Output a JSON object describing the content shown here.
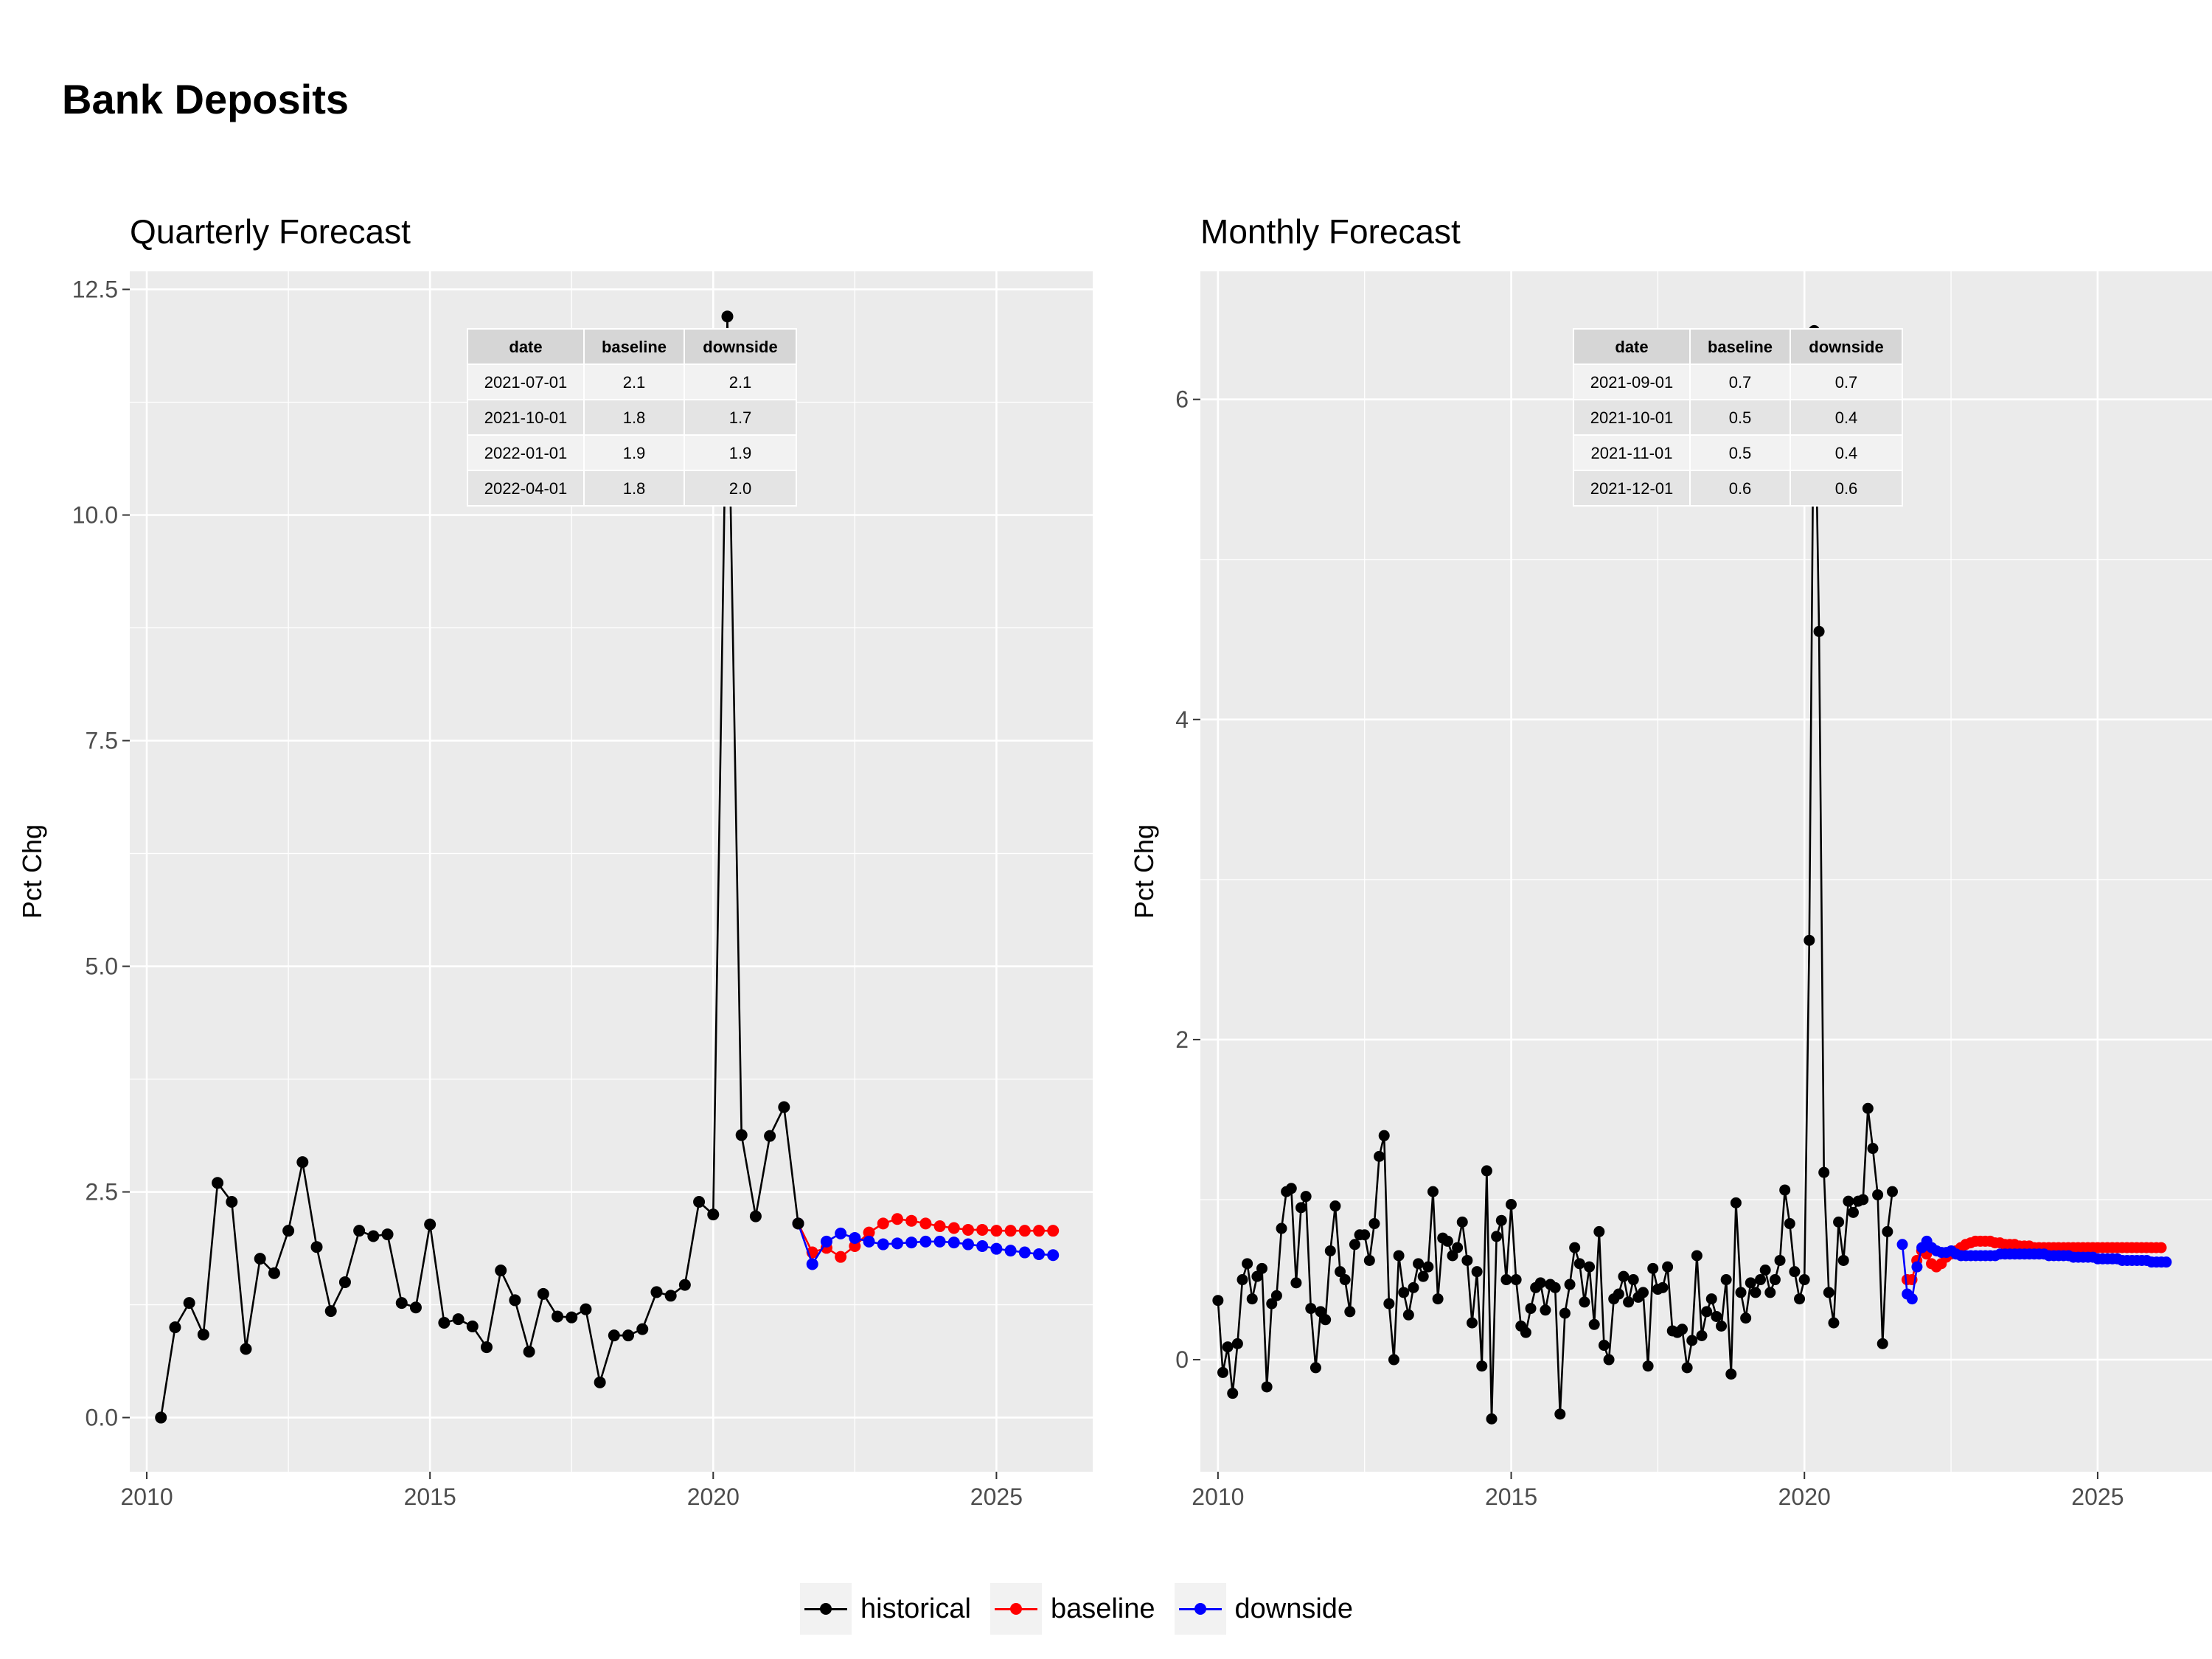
{
  "title": "Bank Deposits",
  "colors": {
    "historical": "#000000",
    "baseline": "#ff0000",
    "downside": "#0000ff",
    "panel_bg": "#ebebeb",
    "grid": "#ffffff"
  },
  "legend": [
    {
      "name": "historical",
      "color": "#000000"
    },
    {
      "name": "baseline",
      "color": "#ff0000"
    },
    {
      "name": "downside",
      "color": "#0000ff"
    }
  ],
  "chart_data": [
    {
      "type": "line",
      "title": "Quarterly Forecast",
      "ylabel": "Pct Chg",
      "xlabel": "",
      "xlim": [
        2009.7,
        2026.7
      ],
      "ylim": [
        -0.6,
        12.7
      ],
      "xticks": [
        2010,
        2015,
        2020,
        2025
      ],
      "yticks": [
        0.0,
        2.5,
        5.0,
        7.5,
        10.0,
        12.5
      ],
      "ytick_labels": [
        "0.0",
        "2.5",
        "5.0",
        "7.5",
        "10.0",
        "12.5"
      ],
      "grid": true,
      "legend_position": "bottom",
      "series": [
        {
          "name": "historical",
          "color": "#000000",
          "x": [
            2010.25,
            2010.5,
            2010.75,
            2011.0,
            2011.25,
            2011.5,
            2011.75,
            2012.0,
            2012.25,
            2012.5,
            2012.75,
            2013.0,
            2013.25,
            2013.5,
            2013.75,
            2014.0,
            2014.25,
            2014.5,
            2014.75,
            2015.0,
            2015.25,
            2015.5,
            2015.75,
            2016.0,
            2016.25,
            2016.5,
            2016.75,
            2017.0,
            2017.25,
            2017.5,
            2017.75,
            2018.0,
            2018.25,
            2018.5,
            2018.75,
            2019.0,
            2019.25,
            2019.5,
            2019.75,
            2020.0,
            2020.25,
            2020.5,
            2020.75,
            2021.0,
            2021.25,
            2021.5
          ],
          "y": [
            0.0,
            1.0,
            1.27,
            0.92,
            2.6,
            2.39,
            0.76,
            1.76,
            1.6,
            2.07,
            2.83,
            1.89,
            1.18,
            1.5,
            2.07,
            2.01,
            2.03,
            1.27,
            1.22,
            2.14,
            1.05,
            1.09,
            1.01,
            0.78,
            1.63,
            1.3,
            0.73,
            1.37,
            1.12,
            1.11,
            1.2,
            0.39,
            0.91,
            0.91,
            0.98,
            1.39,
            1.35,
            1.47,
            2.39,
            2.25,
            12.2,
            3.13,
            2.23,
            3.12,
            3.44,
            2.15
          ]
        },
        {
          "name": "baseline",
          "color": "#ff0000",
          "x": [
            2021.5,
            2021.75,
            2022.0,
            2022.25,
            2022.5,
            2022.75,
            2023.0,
            2023.25,
            2023.5,
            2023.75,
            2024.0,
            2024.25,
            2024.5,
            2024.75,
            2025.0,
            2025.25,
            2025.5,
            2025.75,
            2026.0
          ],
          "y": [
            2.15,
            1.83,
            1.88,
            1.78,
            1.9,
            2.05,
            2.15,
            2.2,
            2.18,
            2.15,
            2.12,
            2.1,
            2.08,
            2.08,
            2.07,
            2.07,
            2.07,
            2.07,
            2.07
          ]
        },
        {
          "name": "downside",
          "color": "#0000ff",
          "x": [
            2021.5,
            2021.75,
            2022.0,
            2022.25,
            2022.5,
            2022.75,
            2023.0,
            2023.25,
            2023.5,
            2023.75,
            2024.0,
            2024.25,
            2024.5,
            2024.75,
            2025.0,
            2025.25,
            2025.5,
            2025.75,
            2026.0
          ],
          "y": [
            2.15,
            1.7,
            1.95,
            2.04,
            1.99,
            1.95,
            1.92,
            1.93,
            1.94,
            1.95,
            1.95,
            1.94,
            1.92,
            1.9,
            1.87,
            1.85,
            1.83,
            1.81,
            1.8
          ]
        }
      ],
      "table": {
        "columns": [
          "date",
          "baseline",
          "downside"
        ],
        "rows": [
          [
            "2021-07-01",
            "2.1",
            "2.1"
          ],
          [
            "2021-10-01",
            "1.8",
            "1.7"
          ],
          [
            "2022-01-01",
            "1.9",
            "1.9"
          ],
          [
            "2022-04-01",
            "1.8",
            "2.0"
          ]
        ]
      }
    },
    {
      "type": "line",
      "title": "Monthly Forecast",
      "ylabel": "Pct Chg",
      "xlabel": "",
      "xlim": [
        2009.7,
        2026.95
      ],
      "ylim": [
        -0.7,
        6.8
      ],
      "xticks": [
        2010,
        2015,
        2020,
        2025
      ],
      "yticks": [
        0,
        2,
        4,
        6
      ],
      "ytick_labels": [
        "0",
        "2",
        "4",
        "6"
      ],
      "grid": true,
      "legend_position": "bottom",
      "series": [
        {
          "name": "historical",
          "color": "#000000",
          "x_start": 2010.0,
          "x_step": 0.08333,
          "y": [
            0.37,
            -0.08,
            0.08,
            -0.21,
            0.1,
            0.5,
            0.6,
            0.38,
            0.52,
            0.57,
            -0.17,
            0.35,
            0.4,
            0.82,
            1.05,
            1.07,
            0.48,
            0.95,
            1.02,
            0.32,
            -0.05,
            0.3,
            0.25,
            0.68,
            0.96,
            0.55,
            0.5,
            0.3,
            0.72,
            0.78,
            0.78,
            0.62,
            0.85,
            1.27,
            1.4,
            0.35,
            0.0,
            0.65,
            0.42,
            0.28,
            0.45,
            0.6,
            0.52,
            0.58,
            1.05,
            0.38,
            0.76,
            0.74,
            0.65,
            0.7,
            0.86,
            0.62,
            0.23,
            0.55,
            -0.04,
            1.18,
            -0.37,
            0.77,
            0.87,
            0.5,
            0.97,
            0.5,
            0.21,
            0.17,
            0.32,
            0.45,
            0.48,
            0.31,
            0.47,
            0.45,
            -0.34,
            0.29,
            0.47,
            0.7,
            0.6,
            0.36,
            0.58,
            0.22,
            0.8,
            0.09,
            0.0,
            0.38,
            0.41,
            0.52,
            0.36,
            0.5,
            0.39,
            0.42,
            -0.04,
            0.57,
            0.44,
            0.45,
            0.58,
            0.18,
            0.17,
            0.19,
            -0.05,
            0.12,
            0.65,
            0.15,
            0.3,
            0.38,
            0.27,
            0.21,
            0.5,
            -0.09,
            0.98,
            0.42,
            0.26,
            0.48,
            0.42,
            0.5,
            0.56,
            0.42,
            0.5,
            0.62,
            1.06,
            0.85,
            0.55,
            0.38,
            0.5,
            2.62,
            6.43,
            4.55,
            1.17,
            0.42,
            0.23,
            0.86,
            0.62,
            0.99,
            0.92,
            0.99,
            1.0,
            1.57,
            1.32,
            1.03,
            0.1,
            0.8,
            1.05
          ]
        },
        {
          "name": "baseline",
          "color": "#ff0000",
          "x_start": 2021.75,
          "x_step": 0.08333,
          "y": [
            0.5,
            0.5,
            0.62,
            0.68,
            0.66,
            0.6,
            0.58,
            0.6,
            0.64,
            0.66,
            0.68,
            0.7,
            0.72,
            0.73,
            0.74,
            0.74,
            0.74,
            0.74,
            0.73,
            0.73,
            0.72,
            0.72,
            0.72,
            0.71,
            0.71,
            0.71,
            0.7,
            0.7,
            0.7,
            0.7,
            0.7,
            0.7,
            0.7,
            0.7,
            0.7,
            0.7,
            0.7,
            0.7,
            0.7,
            0.7,
            0.7,
            0.7,
            0.7,
            0.7,
            0.7,
            0.7,
            0.7,
            0.7,
            0.7,
            0.7,
            0.7,
            0.7,
            0.7
          ]
        },
        {
          "name": "downside",
          "color": "#0000ff",
          "x_start": 2021.67,
          "x_step": 0.08333,
          "y": [
            0.72,
            0.41,
            0.38,
            0.58,
            0.7,
            0.74,
            0.7,
            0.68,
            0.67,
            0.67,
            0.68,
            0.66,
            0.65,
            0.65,
            0.65,
            0.65,
            0.65,
            0.65,
            0.65,
            0.65,
            0.66,
            0.66,
            0.66,
            0.66,
            0.66,
            0.66,
            0.66,
            0.66,
            0.66,
            0.66,
            0.65,
            0.65,
            0.65,
            0.65,
            0.65,
            0.64,
            0.64,
            0.64,
            0.64,
            0.64,
            0.63,
            0.63,
            0.63,
            0.63,
            0.63,
            0.62,
            0.62,
            0.62,
            0.62,
            0.62,
            0.62,
            0.61,
            0.61,
            0.61,
            0.61
          ]
        }
      ],
      "table": {
        "columns": [
          "date",
          "baseline",
          "downside"
        ],
        "rows": [
          [
            "2021-09-01",
            "0.7",
            "0.7"
          ],
          [
            "2021-10-01",
            "0.5",
            "0.4"
          ],
          [
            "2021-11-01",
            "0.5",
            "0.4"
          ],
          [
            "2021-12-01",
            "0.6",
            "0.6"
          ]
        ]
      }
    }
  ]
}
